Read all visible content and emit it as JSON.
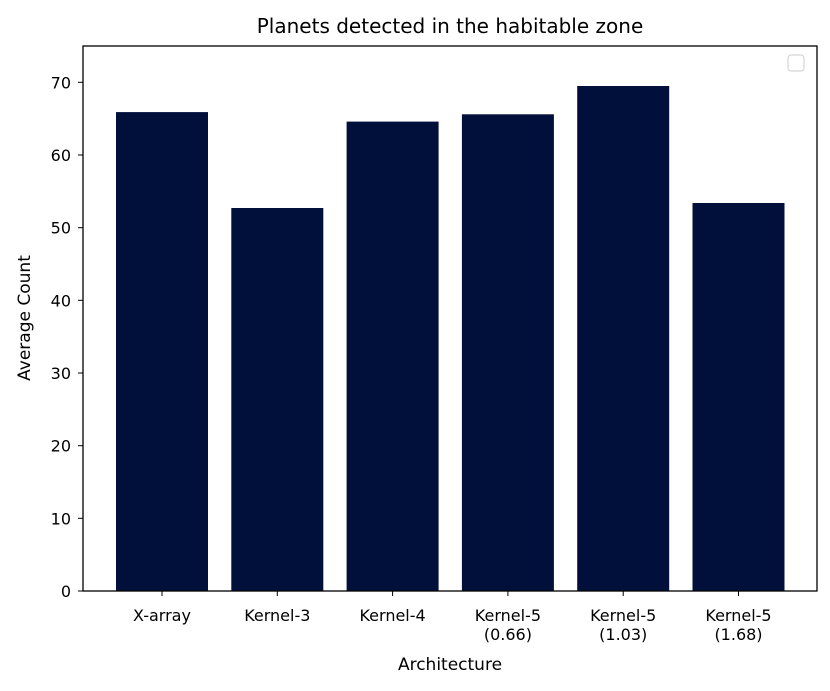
{
  "chart_data": {
    "type": "bar",
    "title": "Planets detected in the habitable zone",
    "xlabel": "Architecture",
    "ylabel": "Average Count",
    "categories": [
      [
        "X-array"
      ],
      [
        "Kernel-3"
      ],
      [
        "Kernel-4"
      ],
      [
        "Kernel-5",
        "(0.66)"
      ],
      [
        "Kernel-5",
        "(1.03)"
      ],
      [
        "Kernel-5",
        "(1.68)"
      ]
    ],
    "values": [
      65.9,
      52.7,
      64.6,
      65.6,
      69.5,
      53.4
    ],
    "ylim": [
      0,
      75
    ],
    "yticks": [
      0,
      10,
      20,
      30,
      40,
      50,
      60,
      70
    ],
    "grid": false,
    "legend": "top-right",
    "legend_entries": [],
    "bar_color": "#00103b"
  }
}
